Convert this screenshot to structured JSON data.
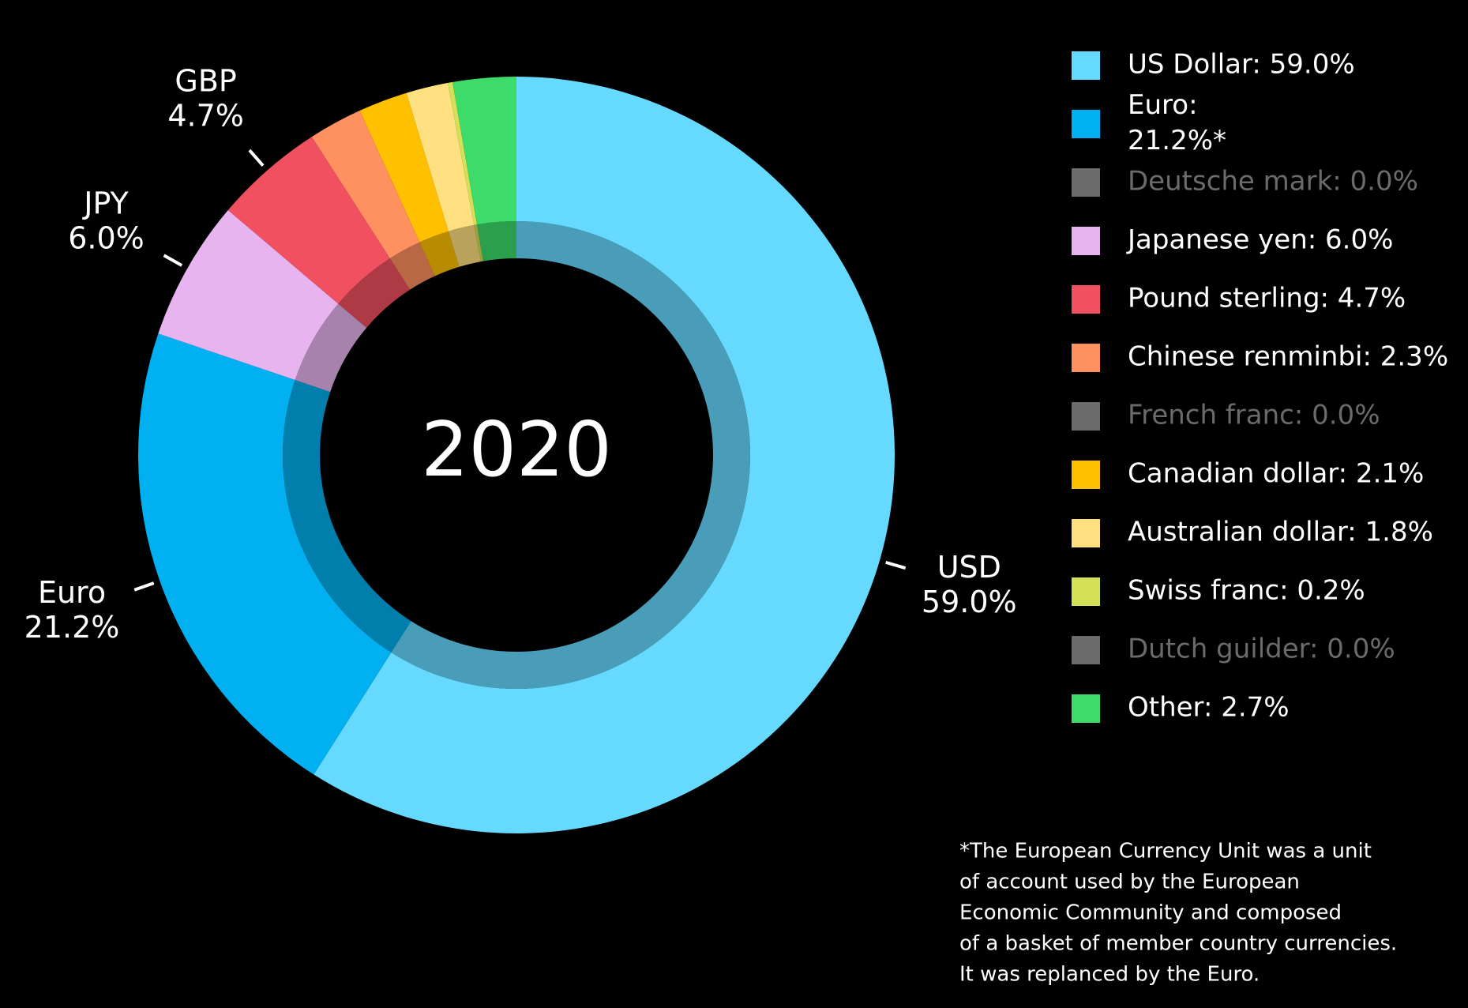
{
  "chart_data": {
    "type": "donut",
    "center_label": "2020",
    "categories": [
      "US Dollar",
      "Euro",
      "Deutsche mark",
      "Japanese yen",
      "Pound sterling",
      "Chinese renminbi",
      "French franc",
      "Canadian dollar",
      "Australian dollar",
      "Swiss franc",
      "Dutch guilder",
      "Other"
    ],
    "values": [
      59.0,
      21.2,
      0.0,
      6.0,
      4.7,
      2.3,
      0.0,
      2.1,
      1.8,
      0.2,
      0.0,
      2.7
    ],
    "colors": [
      "#66d9ff",
      "#00b0f0",
      "#6b6b6b",
      "#e8b4f0",
      "#f0505f",
      "#ff9060",
      "#6b6b6b",
      "#ffc000",
      "#ffe080",
      "#d4e157",
      "#6b6b6b",
      "#3ddc6a"
    ],
    "legend_labels": [
      [
        "US Dollar: 59.0%"
      ],
      [
        "Euro:",
        "21.2%*"
      ],
      [
        "Deutsche mark: 0.0%"
      ],
      [
        "Japanese yen: 6.0%"
      ],
      [
        "Pound sterling: 4.7%"
      ],
      [
        "Chinese renminbi: 2.3%"
      ],
      [
        "French franc: 0.0%"
      ],
      [
        "Canadian dollar: 2.1%"
      ],
      [
        "Australian dollar: 1.8%"
      ],
      [
        "Swiss franc: 0.2%"
      ],
      [
        "Dutch guilder: 0.0%"
      ],
      [
        "Other: 2.7%"
      ]
    ],
    "short_names": [
      "USD",
      "Euro",
      null,
      "JPY",
      "GBP",
      null,
      null,
      null,
      null,
      null,
      null,
      null
    ],
    "value_labels": [
      "59.0%",
      "21.2%",
      null,
      "6.0%",
      "4.7%",
      null,
      null,
      null,
      null,
      null,
      null,
      null
    ],
    "footnote": [
      "*The European Currency Unit was a unit",
      "of account used by the European",
      "Economic Community and composed",
      "of a basket of member country currencies.",
      "It was replanced by the Euro."
    ]
  }
}
